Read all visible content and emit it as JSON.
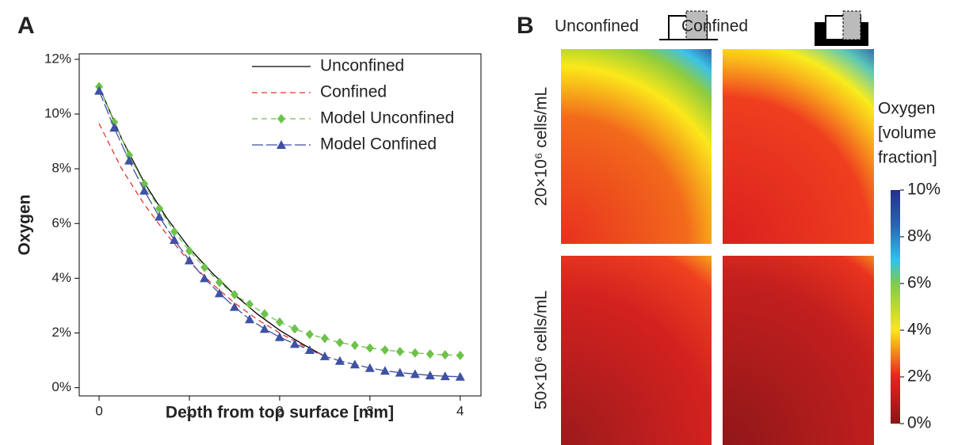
{
  "chart_data": [
    {
      "type": "line",
      "panel_label": "A",
      "x_label": "Depth from top surface [mm]",
      "y_label": "Oxygen",
      "xlim": [
        -0.22,
        4.23
      ],
      "xticks": [
        0,
        1,
        2,
        3,
        4
      ],
      "ylim": [
        -0.3,
        12.2
      ],
      "yticks": [
        {
          "value": 0,
          "label": "0%"
        },
        {
          "value": 2,
          "label": "2%"
        },
        {
          "value": 4,
          "label": "4%"
        },
        {
          "value": 6,
          "label": "6%"
        },
        {
          "value": 8,
          "label": "8%"
        },
        {
          "value": 10,
          "label": "10%"
        },
        {
          "value": 12,
          "label": "12%"
        }
      ],
      "legend": "upper right",
      "series": [
        {
          "name": "Unconfined",
          "color": "#000000",
          "dash": "solid",
          "marker": "none",
          "x": [
            0,
            0.25,
            0.5,
            0.75,
            1,
            1.25,
            1.5,
            1.75,
            2,
            2.25,
            2.5
          ],
          "values": [
            11.0,
            9.1,
            7.5,
            6.2,
            5.1,
            4.2,
            3.4,
            2.7,
            2.1,
            1.6,
            1.15
          ]
        },
        {
          "name": "Confined",
          "color": "#e8312f",
          "dash": "dashed",
          "marker": "none",
          "x": [
            0,
            0.25,
            0.5,
            0.75,
            1,
            1.25,
            1.5,
            1.75,
            2,
            2.25,
            2.5
          ],
          "values": [
            9.65,
            8.0,
            6.7,
            5.6,
            4.6,
            3.8,
            3.1,
            2.5,
            2.0,
            1.55,
            1.15
          ]
        },
        {
          "name": "Model Unconfined",
          "color": "#6cc24a",
          "dash": "dashed",
          "marker": "diamond",
          "x": [
            0,
            0.167,
            0.333,
            0.5,
            0.667,
            0.833,
            1,
            1.167,
            1.333,
            1.5,
            1.667,
            1.833,
            2,
            2.167,
            2.333,
            2.5,
            2.667,
            2.833,
            3,
            3.167,
            3.333,
            3.5,
            3.667,
            3.833,
            4
          ],
          "values": [
            11.0,
            9.7,
            8.5,
            7.45,
            6.55,
            5.7,
            5.0,
            4.4,
            3.85,
            3.4,
            3.05,
            2.7,
            2.4,
            2.15,
            1.95,
            1.8,
            1.65,
            1.55,
            1.45,
            1.38,
            1.32,
            1.27,
            1.23,
            1.2,
            1.18
          ]
        },
        {
          "name": "Model Confined",
          "color": "#3f51a3",
          "dash": "longdash",
          "marker": "triangle",
          "x": [
            0,
            0.167,
            0.333,
            0.5,
            0.667,
            0.833,
            1,
            1.167,
            1.333,
            1.5,
            1.667,
            1.833,
            2,
            2.167,
            2.333,
            2.5,
            2.667,
            2.833,
            3,
            3.167,
            3.333,
            3.5,
            3.667,
            3.833,
            4
          ],
          "values": [
            10.85,
            9.5,
            8.3,
            7.2,
            6.25,
            5.4,
            4.65,
            4.0,
            3.45,
            2.95,
            2.5,
            2.15,
            1.85,
            1.6,
            1.38,
            1.15,
            0.98,
            0.85,
            0.72,
            0.62,
            0.55,
            0.5,
            0.45,
            0.42,
            0.4
          ]
        }
      ]
    },
    {
      "type": "heatmap",
      "panel_label": "B",
      "columns": [
        "Unconfined",
        "Confined"
      ],
      "rows": [
        "20×10⁶ cells/mL",
        "50×10⁶ cells/mL"
      ],
      "colorbar_title": [
        "Oxygen",
        "[volume",
        "fraction]"
      ],
      "colorbar_lim": [
        0,
        10
      ],
      "colorbar_ticks": [
        {
          "value": 0,
          "label": "0%"
        },
        {
          "value": 2,
          "label": "2%"
        },
        {
          "value": 4,
          "label": "4%"
        },
        {
          "value": 6,
          "label": "6%"
        },
        {
          "value": 8,
          "label": "8%"
        },
        {
          "value": 10,
          "label": "10%"
        }
      ]
    }
  ]
}
